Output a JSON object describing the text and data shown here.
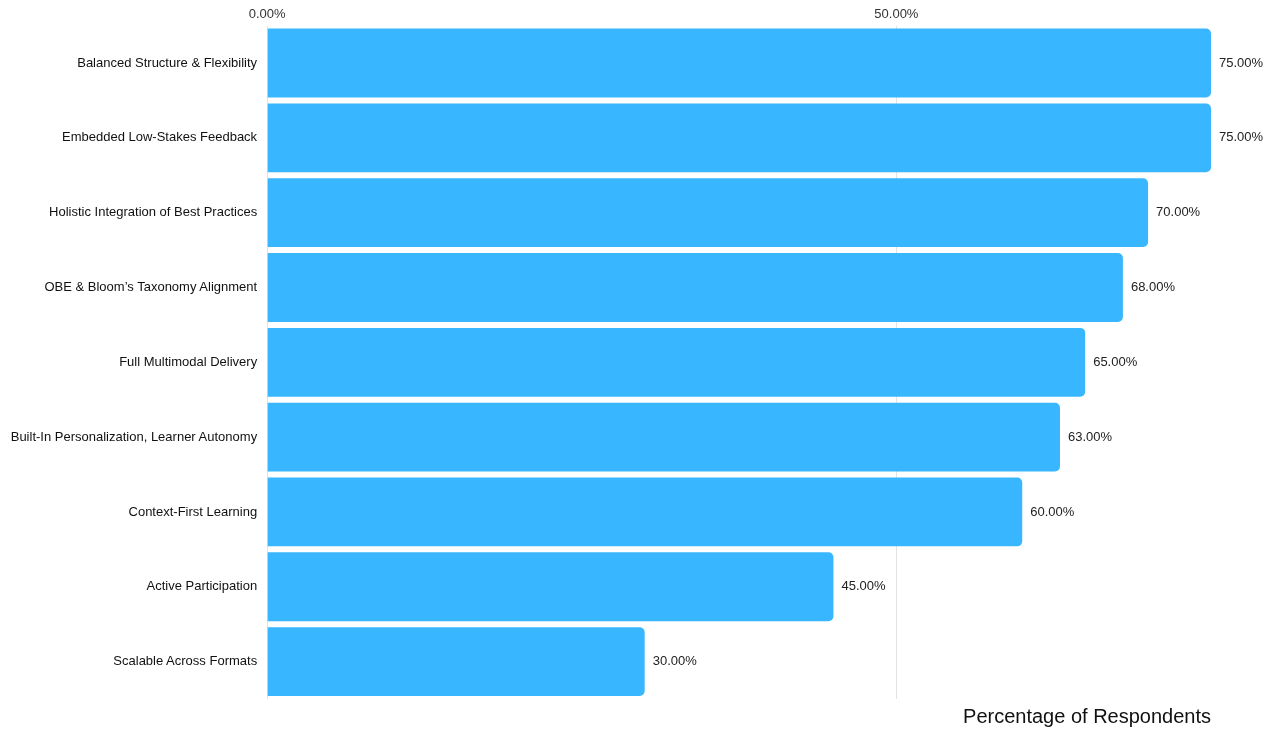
{
  "chart_data": {
    "type": "bar",
    "orientation": "horizontal",
    "xlabel": "Percentage of Respondents",
    "categories": [
      "Balanced Structure & Flexibility",
      "Embedded Low-Stakes Feedback",
      "Holistic Integration of Best Practices",
      "OBE & Bloom’s Taxonomy Alignment",
      "Full Multimodal Delivery",
      "Built-In Personalization, Learner Autonomy",
      "Context-First Learning",
      "Active Participation",
      "Scalable Across Formats"
    ],
    "values": [
      75,
      75,
      70,
      68,
      65,
      63,
      60,
      45,
      30
    ],
    "value_labels": [
      "75.00%",
      "75.00%",
      "70.00%",
      "68.00%",
      "65.00%",
      "63.00%",
      "60.00%",
      "45.00%",
      "30.00%"
    ],
    "color": "#38b6ff",
    "xlim": [
      0,
      75
    ],
    "xticks": [
      {
        "value": 0,
        "label": "0.00%"
      },
      {
        "value": 50,
        "label": "50.00%"
      }
    ],
    "grid": "x",
    "legend": false
  }
}
